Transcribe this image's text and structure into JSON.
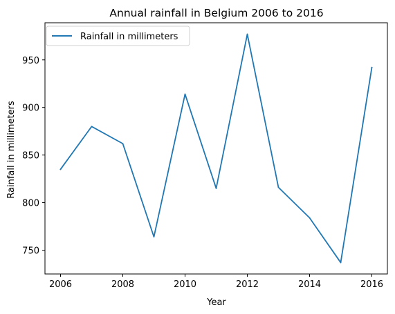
{
  "chart_data": {
    "type": "line",
    "title": "Annual rainfall in Belgium 2006 to 2016",
    "xlabel": "Year",
    "ylabel": "Rainfall in millimeters",
    "x": [
      2006,
      2007,
      2008,
      2009,
      2010,
      2011,
      2012,
      2013,
      2014,
      2015,
      2016
    ],
    "series": [
      {
        "name": "Rainfall in millimeters",
        "values": [
          835,
          880,
          862,
          764,
          914,
          815,
          977,
          816,
          784,
          737,
          942
        ],
        "color": "#1f77b4"
      }
    ],
    "xlim": [
      2005.5,
      2016.5
    ],
    "ylim": [
      725,
      989
    ],
    "xticks": [
      2006,
      2008,
      2010,
      2012,
      2014,
      2016
    ],
    "yticks": [
      750,
      800,
      850,
      900,
      950
    ],
    "grid": false,
    "legend_position": "top-left"
  }
}
